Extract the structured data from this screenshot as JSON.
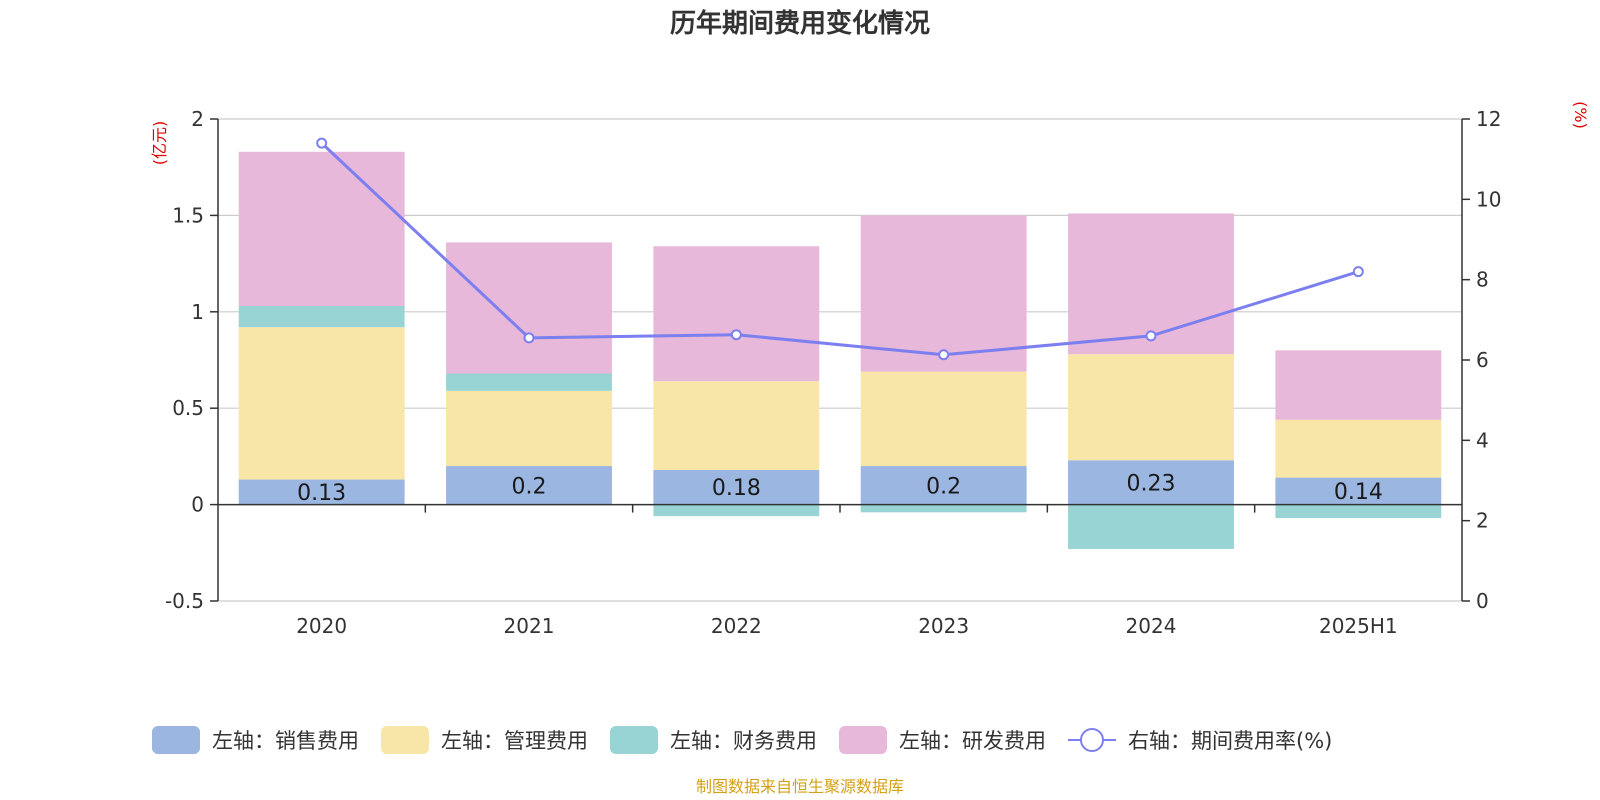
{
  "chart_data": {
    "type": "bar",
    "title": "历年期间费用变化情况",
    "left_axis": {
      "unit": "(亿元)",
      "ylim": [
        -0.5,
        2
      ],
      "ticks": [
        "-0.5",
        "0",
        "0.5",
        "1",
        "1.5",
        "2"
      ]
    },
    "right_axis": {
      "unit": "(%)",
      "ylim": [
        0,
        12
      ],
      "ticks": [
        "0",
        "2",
        "4",
        "6",
        "8",
        "10",
        "12"
      ]
    },
    "categories": [
      "2020",
      "2021",
      "2022",
      "2023",
      "2024",
      "2025H1"
    ],
    "grid": true,
    "legend_position": "bottom",
    "series": [
      {
        "name": "左轴：销售费用",
        "type": "bar",
        "axis": "left",
        "color": "#9bb6e0",
        "values": [
          0.13,
          0.2,
          0.18,
          0.2,
          0.23,
          0.14
        ],
        "labels": [
          "0.13",
          "0.2",
          "0.18",
          "0.2",
          "0.23",
          "0.14"
        ]
      },
      {
        "name": "左轴：管理费用",
        "type": "bar",
        "axis": "left",
        "color": "#f8e6a8",
        "values": [
          0.79,
          0.39,
          0.46,
          0.49,
          0.55,
          0.3
        ]
      },
      {
        "name": "左轴：财务费用",
        "type": "bar",
        "axis": "left",
        "color": "#99d4d4",
        "values": [
          0.11,
          0.09,
          -0.06,
          -0.04,
          -0.23,
          -0.07
        ]
      },
      {
        "name": "左轴：研发费用",
        "type": "bar",
        "axis": "left",
        "color": "#e7b8d9",
        "values": [
          0.8,
          0.68,
          0.7,
          0.81,
          0.73,
          0.36
        ]
      },
      {
        "name": "右轴：期间费用率(%)",
        "type": "line",
        "axis": "right",
        "color": "#7b7ff0",
        "values": [
          11.4,
          6.55,
          6.63,
          6.13,
          6.6,
          8.2
        ]
      }
    ]
  },
  "source_note": "制图数据来自恒生聚源数据库"
}
